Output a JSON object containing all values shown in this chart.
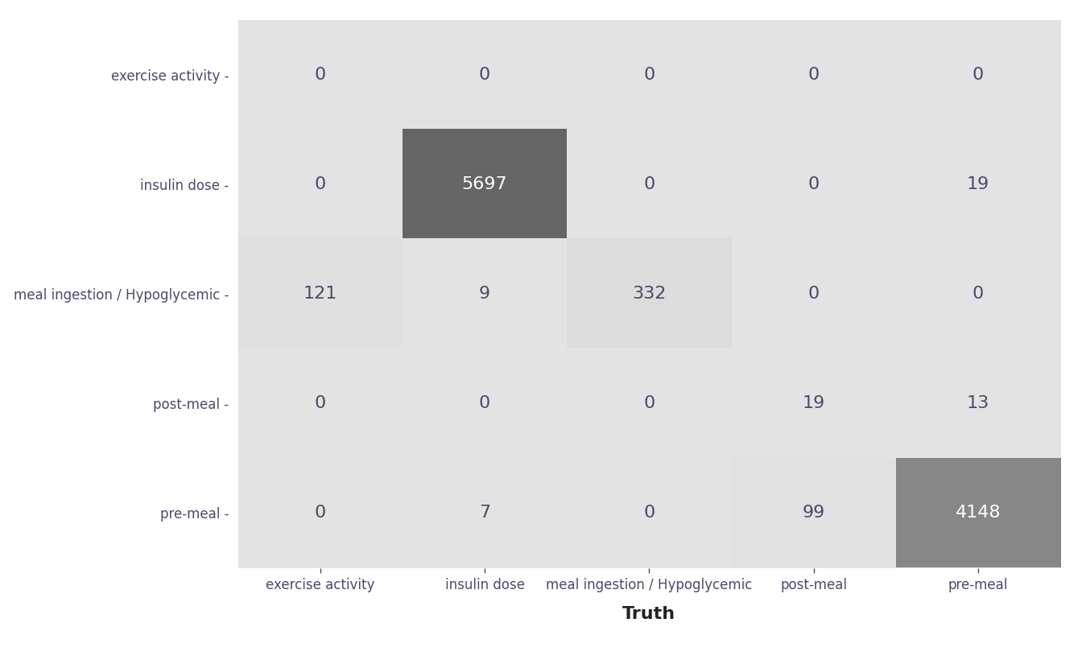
{
  "classes": [
    "exercise activity",
    "insulin dose",
    "meal ingestion / Hypoglycemic",
    "post-meal",
    "pre-meal"
  ],
  "matrix": [
    [
      0,
      0,
      0,
      0,
      0
    ],
    [
      0,
      5697,
      0,
      0,
      19
    ],
    [
      121,
      9,
      332,
      0,
      0
    ],
    [
      0,
      0,
      0,
      19,
      13
    ],
    [
      0,
      7,
      0,
      99,
      4148
    ]
  ],
  "xlabel": "Truth",
  "bg_color": "#ffffff",
  "plot_bg_color": "#e3e3e3",
  "text_color": "#4a4a6a",
  "axis_label_color": "#222222",
  "cmap_low": "#e3e3e3",
  "cmap_high": "#656565",
  "figsize": [
    13.44,
    8.3
  ],
  "dpi": 100,
  "cell_fontsize": 16,
  "tick_fontsize": 12,
  "label_fontsize": 16
}
